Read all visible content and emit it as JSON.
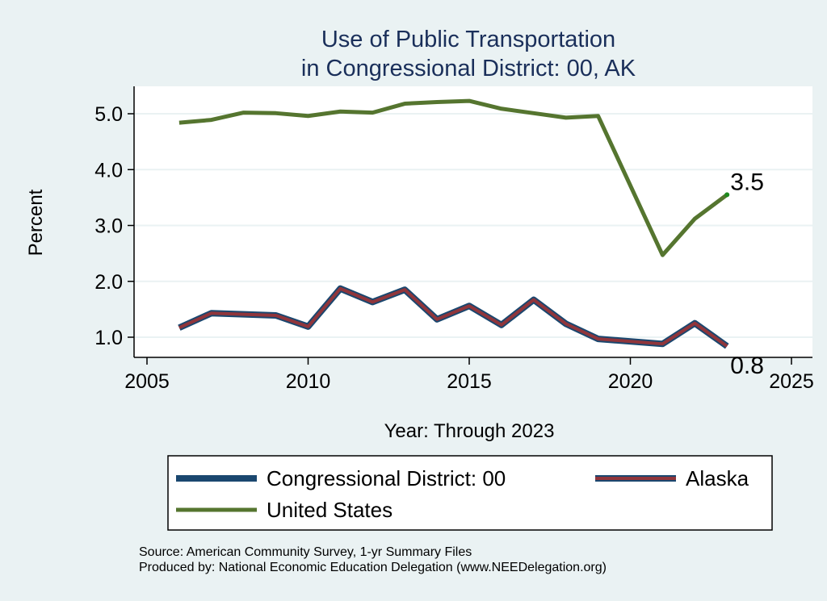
{
  "chart_data": {
    "type": "line",
    "title": [
      "Use of Public Transportation",
      "in Congressional District: 00, AK"
    ],
    "xlabel": "Year: Through 2023",
    "ylabel": "Percent",
    "xlim": [
      2005,
      2025
    ],
    "ylim": [
      1.0,
      5.0
    ],
    "xticks": [
      "2005",
      "2010",
      "2015",
      "2020",
      "2025"
    ],
    "yticks": [
      "1.0",
      "2.0",
      "3.0",
      "4.0",
      "5.0"
    ],
    "grid": true,
    "x": [
      2006,
      2007,
      2008,
      2009,
      2010,
      2011,
      2012,
      2013,
      2014,
      2015,
      2016,
      2017,
      2018,
      2019,
      2021,
      2022,
      2023
    ],
    "series": [
      {
        "name": "Congressional District: 00",
        "color": "#1a476f",
        "values": [
          1.17,
          1.43,
          1.41,
          1.39,
          1.19,
          1.87,
          1.63,
          1.85,
          1.32,
          1.56,
          1.22,
          1.67,
          1.24,
          0.97,
          0.88,
          1.25,
          0.84
        ]
      },
      {
        "name": "Alaska",
        "color": "#90353b",
        "values": [
          1.17,
          1.43,
          1.41,
          1.39,
          1.19,
          1.87,
          1.63,
          1.85,
          1.32,
          1.56,
          1.22,
          1.67,
          1.24,
          0.97,
          0.88,
          1.25,
          0.84
        ]
      },
      {
        "name": "United States",
        "color": "#55752f",
        "values": [
          4.84,
          4.89,
          5.02,
          5.01,
          4.96,
          5.04,
          5.02,
          5.18,
          5.21,
          5.23,
          5.09,
          5.01,
          4.93,
          4.96,
          2.47,
          3.12,
          3.55
        ]
      }
    ],
    "end_labels": {
      "United States": "3.5",
      "Alaska": "0.8"
    },
    "legend_position": "bottom",
    "notes": [
      "Source: American Community Survey, 1-yr Summary Files",
      "Produced by: National Economic Education Delegation (www.NEEDelegation.org)"
    ]
  }
}
